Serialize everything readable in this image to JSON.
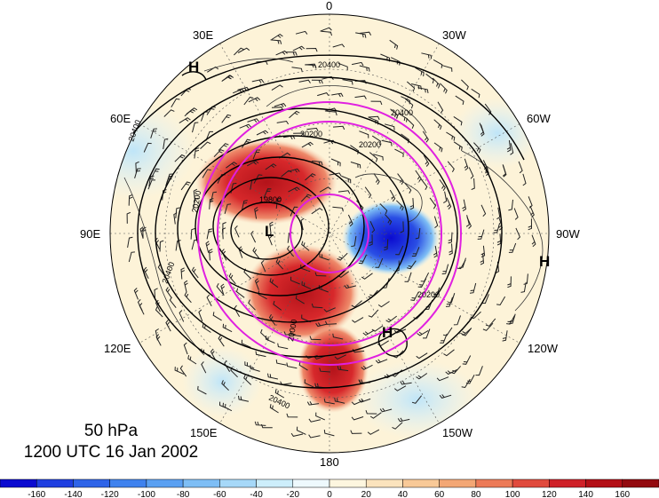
{
  "map": {
    "level": "50 hPa",
    "time": "1200 UTC 16 Jan 2002",
    "longitude_labels": {
      "top": "0",
      "upper_left": "30E",
      "upper_right": "30W",
      "mid_upper_left": "60E",
      "mid_upper_right": "60W",
      "left": "90E",
      "right": "90W",
      "mid_lower_left": "120E",
      "mid_lower_right": "120W",
      "lower_left": "150E",
      "lower_right": "150W",
      "bottom": "180"
    },
    "contour_labels": [
      "20400",
      "20400",
      "20200",
      "20200",
      "19800",
      "20400",
      "20200",
      "20000",
      "20400",
      "20200",
      "20400"
    ],
    "pressure_centers": [
      "H",
      "L",
      "H",
      "H"
    ],
    "colors": {
      "positive": "#d7191c",
      "negative": "#1a1ad6",
      "ring": "#e020e0"
    }
  },
  "colorbar": {
    "tick_labels": [
      "-160",
      "-140",
      "-120",
      "-100",
      "-80",
      "-60",
      "-40",
      "-20",
      "0",
      "20",
      "40",
      "60",
      "80",
      "100",
      "120",
      "140",
      "160"
    ],
    "colors": [
      "#0b0bd0",
      "#1f3fe0",
      "#2f64e8",
      "#3f82ee",
      "#5aa0f2",
      "#7ebef5",
      "#a6d8f8",
      "#cdeefb",
      "#eef9fd",
      "#fdf6df",
      "#fbe3bd",
      "#f8c997",
      "#f3a775",
      "#ec7a57",
      "#e04a3d",
      "#cf2128",
      "#b30f16",
      "#930a0f"
    ]
  }
}
